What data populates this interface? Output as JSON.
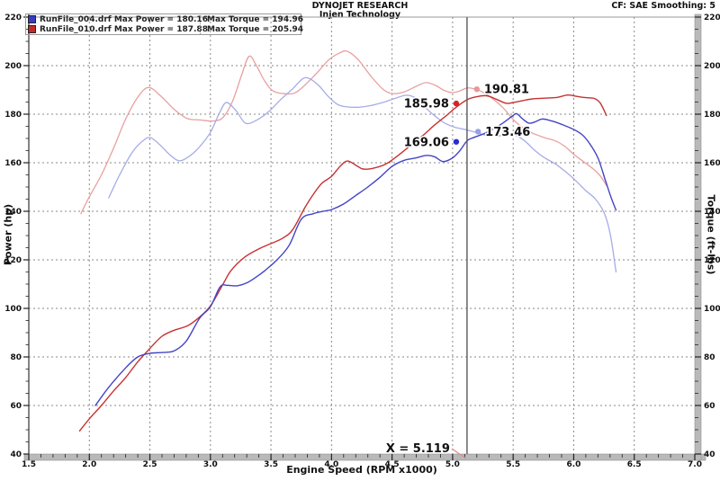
{
  "header": {
    "title": "DYNOJET RESEARCH",
    "subtitle": "Injen Technology",
    "right_note": "CF: SAE  Smoothing: 5"
  },
  "legend": {
    "rows": [
      {
        "swatch_color": "#3a3ac4",
        "file": "RunFile_004.drf",
        "power_label": "Max Power = 180.16",
        "torque_label": "Max Torque = 194.96"
      },
      {
        "swatch_color": "#c42a2a",
        "file": "RunFile_010.drf",
        "power_label": "Max Power = 187.88",
        "torque_label": "Max Torque = 205.94"
      }
    ]
  },
  "chart_data": {
    "type": "line",
    "title": "DYNOJET RESEARCH - Injen Technology",
    "xlabel": "Engine Speed (RPM x1000)",
    "ylabel_left": "Power (hp)",
    "ylabel_right": "Torque (ft-lbs)",
    "x_range": [
      1.5,
      7.0
    ],
    "y_range": [
      40,
      220
    ],
    "x_major": 0.5,
    "x_minor": 0.1,
    "y_major": 20,
    "y_minor": 5,
    "grid": "dashed",
    "legend_position": "top-left",
    "cursor": {
      "x": 5.119,
      "label": "X = 5.119",
      "leader_color": "#e08a8a",
      "line_color": "#5a5a5a"
    },
    "series": [
      {
        "name": "red_torque_run010",
        "color": "#e8a0a0",
        "width": 1.3,
        "points": [
          [
            1.93,
            139
          ],
          [
            2.0,
            146
          ],
          [
            2.1,
            155
          ],
          [
            2.2,
            166
          ],
          [
            2.3,
            178
          ],
          [
            2.4,
            187
          ],
          [
            2.49,
            191
          ],
          [
            2.6,
            187
          ],
          [
            2.7,
            182
          ],
          [
            2.81,
            178.2
          ],
          [
            2.92,
            177.6
          ],
          [
            3.02,
            177.2
          ],
          [
            3.1,
            178.5
          ],
          [
            3.18,
            185
          ],
          [
            3.26,
            196.5
          ],
          [
            3.32,
            203.9
          ],
          [
            3.38,
            200
          ],
          [
            3.45,
            193.5
          ],
          [
            3.52,
            189.5
          ],
          [
            3.62,
            188.4
          ],
          [
            3.7,
            188.8
          ],
          [
            3.78,
            192
          ],
          [
            3.88,
            197
          ],
          [
            3.98,
            202.5
          ],
          [
            4.07,
            205.3
          ],
          [
            4.13,
            205.9
          ],
          [
            4.22,
            202.5
          ],
          [
            4.32,
            196
          ],
          [
            4.42,
            190.5
          ],
          [
            4.5,
            188.5
          ],
          [
            4.6,
            189.2
          ],
          [
            4.7,
            191.5
          ],
          [
            4.78,
            193
          ],
          [
            4.86,
            191.8
          ],
          [
            4.93,
            189.8
          ],
          [
            5.0,
            188.9
          ],
          [
            5.06,
            189.6
          ],
          [
            5.12,
            190.8
          ],
          [
            5.18,
            190.4
          ],
          [
            5.26,
            188.8
          ],
          [
            5.34,
            186
          ],
          [
            5.42,
            182.5
          ],
          [
            5.5,
            177.8
          ],
          [
            5.58,
            174.5
          ],
          [
            5.66,
            172.2
          ],
          [
            5.76,
            170.3
          ],
          [
            5.84,
            169.2
          ],
          [
            5.92,
            167
          ],
          [
            6.0,
            163.5
          ],
          [
            6.08,
            160.5
          ],
          [
            6.16,
            157.5
          ],
          [
            6.22,
            154.5
          ],
          [
            6.27,
            150.7
          ]
        ]
      },
      {
        "name": "blue_torque_run004",
        "color": "#a6ace6",
        "width": 1.3,
        "points": [
          [
            2.16,
            145.5
          ],
          [
            2.25,
            155
          ],
          [
            2.35,
            164
          ],
          [
            2.43,
            168.5
          ],
          [
            2.5,
            170.4
          ],
          [
            2.58,
            167.5
          ],
          [
            2.66,
            163.5
          ],
          [
            2.74,
            160.8
          ],
          [
            2.82,
            162.5
          ],
          [
            2.9,
            166
          ],
          [
            3.0,
            172.5
          ],
          [
            3.07,
            180
          ],
          [
            3.13,
            184.8
          ],
          [
            3.21,
            181.5
          ],
          [
            3.29,
            176.3
          ],
          [
            3.38,
            177.5
          ],
          [
            3.48,
            181
          ],
          [
            3.58,
            186
          ],
          [
            3.68,
            190.5
          ],
          [
            3.78,
            195
          ],
          [
            3.88,
            192.5
          ],
          [
            3.97,
            187.5
          ],
          [
            4.05,
            184
          ],
          [
            4.13,
            183
          ],
          [
            4.23,
            182.9
          ],
          [
            4.33,
            183.6
          ],
          [
            4.43,
            184.9
          ],
          [
            4.53,
            186.6
          ],
          [
            4.62,
            187.8
          ],
          [
            4.7,
            186.5
          ],
          [
            4.78,
            182.5
          ],
          [
            4.86,
            179
          ],
          [
            4.94,
            176.2
          ],
          [
            5.02,
            174.6
          ],
          [
            5.12,
            173.5
          ],
          [
            5.2,
            172.4
          ],
          [
            5.29,
            171.2
          ],
          [
            5.37,
            171
          ],
          [
            5.45,
            171.6
          ],
          [
            5.52,
            171.3
          ],
          [
            5.6,
            168.8
          ],
          [
            5.68,
            165
          ],
          [
            5.76,
            162
          ],
          [
            5.85,
            159.5
          ],
          [
            5.94,
            156
          ],
          [
            6.02,
            152.5
          ],
          [
            6.1,
            148.5
          ],
          [
            6.18,
            145
          ],
          [
            6.25,
            139.5
          ],
          [
            6.3,
            131
          ],
          [
            6.35,
            115
          ]
        ]
      },
      {
        "name": "red_power_run010",
        "color": "#c63232",
        "width": 1.4,
        "points": [
          [
            1.92,
            49.5
          ],
          [
            2.0,
            54.5
          ],
          [
            2.1,
            60
          ],
          [
            2.2,
            66
          ],
          [
            2.3,
            71.5
          ],
          [
            2.4,
            78
          ],
          [
            2.5,
            83.5
          ],
          [
            2.6,
            88.5
          ],
          [
            2.7,
            91
          ],
          [
            2.81,
            92.8
          ],
          [
            2.9,
            96
          ],
          [
            3.0,
            101
          ],
          [
            3.11,
            110.5
          ],
          [
            3.17,
            115.6
          ],
          [
            3.28,
            121
          ],
          [
            3.4,
            124.5
          ],
          [
            3.5,
            126.7
          ],
          [
            3.6,
            129
          ],
          [
            3.68,
            132.5
          ],
          [
            3.78,
            141.5
          ],
          [
            3.85,
            147
          ],
          [
            3.92,
            151.5
          ],
          [
            4.0,
            154.4
          ],
          [
            4.07,
            158.5
          ],
          [
            4.13,
            160.7
          ],
          [
            4.2,
            159
          ],
          [
            4.26,
            157.4
          ],
          [
            4.35,
            157.8
          ],
          [
            4.45,
            159.5
          ],
          [
            4.55,
            163
          ],
          [
            4.65,
            167
          ],
          [
            4.75,
            171
          ],
          [
            4.85,
            175.5
          ],
          [
            4.95,
            179.5
          ],
          [
            5.02,
            182.5
          ],
          [
            5.12,
            185.98
          ],
          [
            5.2,
            187.2
          ],
          [
            5.28,
            187.6
          ],
          [
            5.36,
            186.2
          ],
          [
            5.44,
            184.5
          ],
          [
            5.5,
            184.8
          ],
          [
            5.58,
            185.6
          ],
          [
            5.66,
            186.3
          ],
          [
            5.76,
            186.6
          ],
          [
            5.86,
            186.9
          ],
          [
            5.95,
            187.88
          ],
          [
            6.03,
            187.3
          ],
          [
            6.1,
            186.8
          ],
          [
            6.17,
            186.5
          ],
          [
            6.22,
            184.5
          ],
          [
            6.27,
            179.5
          ]
        ]
      },
      {
        "name": "blue_power_run004",
        "color": "#4444c6",
        "width": 1.4,
        "points": [
          [
            2.05,
            60
          ],
          [
            2.16,
            67.5
          ],
          [
            2.3,
            75.5
          ],
          [
            2.4,
            80
          ],
          [
            2.5,
            81.5
          ],
          [
            2.6,
            81.8
          ],
          [
            2.7,
            82.5
          ],
          [
            2.8,
            86.5
          ],
          [
            2.91,
            95.9
          ],
          [
            3.0,
            100.7
          ],
          [
            3.08,
            108.9
          ],
          [
            3.14,
            109.5
          ],
          [
            3.22,
            109.3
          ],
          [
            3.3,
            110.5
          ],
          [
            3.38,
            113
          ],
          [
            3.45,
            115.6
          ],
          [
            3.55,
            120
          ],
          [
            3.65,
            126
          ],
          [
            3.75,
            136.7
          ],
          [
            3.85,
            139
          ],
          [
            3.95,
            140.2
          ],
          [
            4.0,
            140.7
          ],
          [
            4.1,
            143
          ],
          [
            4.2,
            146.5
          ],
          [
            4.3,
            150
          ],
          [
            4.4,
            154
          ],
          [
            4.5,
            158.5
          ],
          [
            4.6,
            161
          ],
          [
            4.7,
            162
          ],
          [
            4.78,
            163
          ],
          [
            4.85,
            162.5
          ],
          [
            4.92,
            160.5
          ],
          [
            5.0,
            162
          ],
          [
            5.06,
            165
          ],
          [
            5.12,
            169.06
          ],
          [
            5.18,
            170.5
          ],
          [
            5.26,
            172
          ],
          [
            5.34,
            174
          ],
          [
            5.42,
            176.5
          ],
          [
            5.5,
            179.5
          ],
          [
            5.53,
            180.16
          ],
          [
            5.58,
            178
          ],
          [
            5.63,
            176.3
          ],
          [
            5.68,
            176.8
          ],
          [
            5.74,
            178
          ],
          [
            5.82,
            177.2
          ],
          [
            5.9,
            175.8
          ],
          [
            6.0,
            173.7
          ],
          [
            6.07,
            171.5
          ],
          [
            6.13,
            168
          ],
          [
            6.2,
            162
          ],
          [
            6.26,
            153
          ],
          [
            6.31,
            145.5
          ],
          [
            6.35,
            140.5
          ]
        ]
      }
    ],
    "markers": [
      {
        "name": "red-torque-cursor-value",
        "label": "190.81",
        "dot": {
          "rpm": 5.2,
          "value": 190.3
        },
        "side": "right",
        "color": "#e8969a"
      },
      {
        "name": "red-power-cursor-value",
        "label": "185.98",
        "dot": {
          "rpm": 5.03,
          "value": 184.4
        },
        "side": "left",
        "color": "#d42525"
      },
      {
        "name": "blue-torque-cursor-value",
        "label": "173.46",
        "dot": {
          "rpm": 5.21,
          "value": 172.8
        },
        "side": "right",
        "color": "#96a0e8"
      },
      {
        "name": "blue-power-cursor-value",
        "label": "169.06",
        "dot": {
          "rpm": 5.03,
          "value": 168.6
        },
        "side": "left",
        "color": "#2a2ad4"
      }
    ]
  },
  "colors": {
    "grid": "#8a8a8a",
    "axis_bar": "#b9b9b9",
    "tick": "#222222",
    "text": "#111111"
  }
}
